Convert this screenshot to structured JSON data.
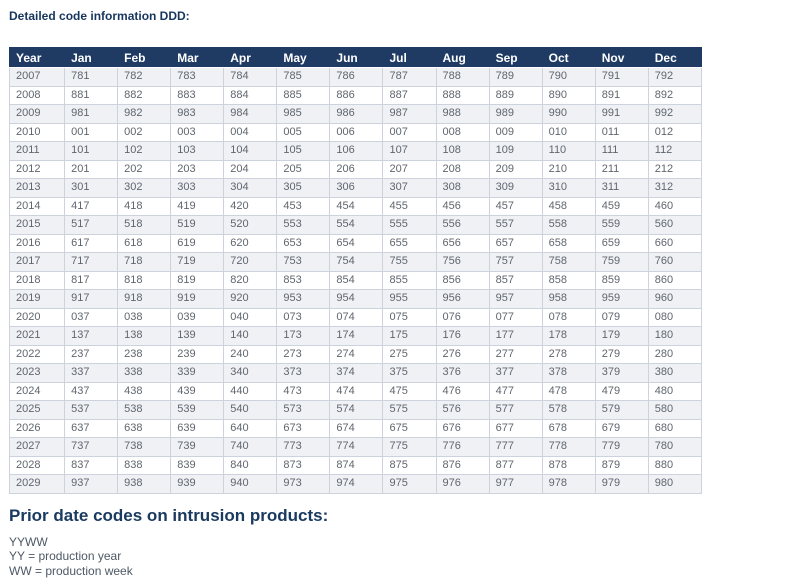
{
  "title": "Detailed code information DDD:",
  "table": {
    "headers": [
      "Year",
      "Jan",
      "Feb",
      "Mar",
      "Apr",
      "May",
      "Jun",
      "Jul",
      "Aug",
      "Sep",
      "Oct",
      "Nov",
      "Dec"
    ],
    "rows": [
      [
        "2007",
        "781",
        "782",
        "783",
        "784",
        "785",
        "786",
        "787",
        "788",
        "789",
        "790",
        "791",
        "792"
      ],
      [
        "2008",
        "881",
        "882",
        "883",
        "884",
        "885",
        "886",
        "887",
        "888",
        "889",
        "890",
        "891",
        "892"
      ],
      [
        "2009",
        "981",
        "982",
        "983",
        "984",
        "985",
        "986",
        "987",
        "988",
        "989",
        "990",
        "991",
        "992"
      ],
      [
        "2010",
        "001",
        "002",
        "003",
        "004",
        "005",
        "006",
        "007",
        "008",
        "009",
        "010",
        "011",
        "012"
      ],
      [
        "2011",
        "101",
        "102",
        "103",
        "104",
        "105",
        "106",
        "107",
        "108",
        "109",
        "110",
        "111",
        "112"
      ],
      [
        "2012",
        "201",
        "202",
        "203",
        "204",
        "205",
        "206",
        "207",
        "208",
        "209",
        "210",
        "211",
        "212"
      ],
      [
        "2013",
        "301",
        "302",
        "303",
        "304",
        "305",
        "306",
        "307",
        "308",
        "309",
        "310",
        "311",
        "312"
      ],
      [
        "2014",
        "417",
        "418",
        "419",
        "420",
        "453",
        "454",
        "455",
        "456",
        "457",
        "458",
        "459",
        "460"
      ],
      [
        "2015",
        "517",
        "518",
        "519",
        "520",
        "553",
        "554",
        "555",
        "556",
        "557",
        "558",
        "559",
        "560"
      ],
      [
        "2016",
        "617",
        "618",
        "619",
        "620",
        "653",
        "654",
        "655",
        "656",
        "657",
        "658",
        "659",
        "660"
      ],
      [
        "2017",
        "717",
        "718",
        "719",
        "720",
        "753",
        "754",
        "755",
        "756",
        "757",
        "758",
        "759",
        "760"
      ],
      [
        "2018",
        "817",
        "818",
        "819",
        "820",
        "853",
        "854",
        "855",
        "856",
        "857",
        "858",
        "859",
        "860"
      ],
      [
        "2019",
        "917",
        "918",
        "919",
        "920",
        "953",
        "954",
        "955",
        "956",
        "957",
        "958",
        "959",
        "960"
      ],
      [
        "2020",
        "037",
        "038",
        "039",
        "040",
        "073",
        "074",
        "075",
        "076",
        "077",
        "078",
        "079",
        "080"
      ],
      [
        "2021",
        "137",
        "138",
        "139",
        "140",
        "173",
        "174",
        "175",
        "176",
        "177",
        "178",
        "179",
        "180"
      ],
      [
        "2022",
        "237",
        "238",
        "239",
        "240",
        "273",
        "274",
        "275",
        "276",
        "277",
        "278",
        "279",
        "280"
      ],
      [
        "2023",
        "337",
        "338",
        "339",
        "340",
        "373",
        "374",
        "375",
        "376",
        "377",
        "378",
        "379",
        "380"
      ],
      [
        "2024",
        "437",
        "438",
        "439",
        "440",
        "473",
        "474",
        "475",
        "476",
        "477",
        "478",
        "479",
        "480"
      ],
      [
        "2025",
        "537",
        "538",
        "539",
        "540",
        "573",
        "574",
        "575",
        "576",
        "577",
        "578",
        "579",
        "580"
      ],
      [
        "2026",
        "637",
        "638",
        "639",
        "640",
        "673",
        "674",
        "675",
        "676",
        "677",
        "678",
        "679",
        "680"
      ],
      [
        "2027",
        "737",
        "738",
        "739",
        "740",
        "773",
        "774",
        "775",
        "776",
        "777",
        "778",
        "779",
        "780"
      ],
      [
        "2028",
        "837",
        "838",
        "839",
        "840",
        "873",
        "874",
        "875",
        "876",
        "877",
        "878",
        "879",
        "880"
      ],
      [
        "2029",
        "937",
        "938",
        "939",
        "940",
        "973",
        "974",
        "975",
        "976",
        "977",
        "978",
        "979",
        "980"
      ]
    ]
  },
  "section": {
    "heading": "Prior date codes on intrusion products:",
    "notes": [
      "YYWW",
      "YY = production year",
      "WW = production week"
    ]
  },
  "colors": {
    "header_bg": "#1F3B63",
    "header_text": "#FFFFFF",
    "title_text": "#17365D",
    "row_alt_bg": "#EFF1F5",
    "cell_border": "#CDD3DC",
    "cell_text": "#60666E",
    "notes_text": "#4D5965"
  }
}
